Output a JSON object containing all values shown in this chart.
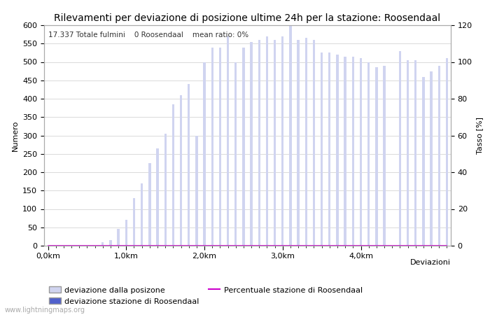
{
  "title": "Rilevamenti per deviazione di posizione ultime 24h per la stazione: Roosendaal",
  "subtitle": "17.337 Totale fulmini    0 Roosendaal    mean ratio: 0%",
  "xlabel": "Deviazioni",
  "ylabel_left": "Numero",
  "ylabel_right": "Tasso [%]",
  "watermark": "www.lightningmaps.org",
  "x_tick_labels": [
    "0,0km",
    "1,0km",
    "2,0km",
    "3,0km",
    "4,0km"
  ],
  "x_tick_positions": [
    0,
    10,
    20,
    30,
    40
  ],
  "ylim_left": [
    0,
    600
  ],
  "ylim_right": [
    0,
    120
  ],
  "bar_color_light": "#d0d4f0",
  "bar_color_dark": "#5060cc",
  "line_color": "#cc00cc",
  "background_color": "#ffffff",
  "grid_color": "#cccccc",
  "bar_values": [
    0,
    0,
    0,
    0,
    2,
    0,
    0,
    10,
    15,
    45,
    70,
    130,
    170,
    225,
    265,
    305,
    385,
    410,
    440,
    300,
    500,
    540,
    540,
    570,
    500,
    540,
    555,
    560,
    570,
    560,
    570,
    600,
    560,
    565,
    560,
    525,
    525,
    520,
    515,
    515,
    510,
    500,
    485,
    490,
    0,
    530,
    505,
    505,
    460,
    475,
    490,
    510
  ],
  "station_bar_indices": [],
  "percentage_values": [
    0,
    0,
    0,
    0,
    0,
    0,
    0,
    0,
    0,
    0,
    0,
    0,
    0,
    0,
    0,
    0,
    0,
    0,
    0,
    0,
    0,
    0,
    0,
    0,
    0,
    0,
    0,
    0,
    0,
    0,
    0,
    0,
    0,
    0,
    0,
    0,
    0,
    0,
    0,
    0,
    0,
    0,
    0,
    0,
    0,
    0,
    0,
    0,
    0,
    0,
    0,
    0
  ],
  "legend_labels": [
    "deviazione dalla posizone",
    "deviazione stazione di Roosendaal",
    "Percentuale stazione di Roosendaal"
  ],
  "title_fontsize": 10,
  "label_fontsize": 8,
  "tick_fontsize": 8
}
